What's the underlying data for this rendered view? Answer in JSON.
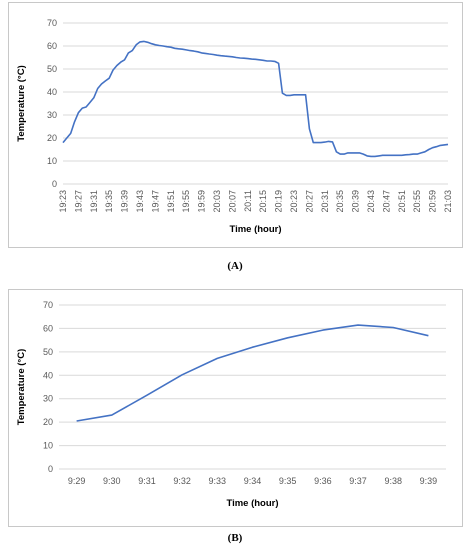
{
  "chart_data": [
    {
      "panel": "(A)",
      "type": "line",
      "title": "",
      "xlabel": "Time (hour)",
      "ylabel": "Temperature (°C)",
      "ylim": [
        0,
        70
      ],
      "yticks": [
        0,
        10,
        20,
        30,
        40,
        50,
        60,
        70
      ],
      "grid": true,
      "xtick_labels": [
        "19:23",
        "19:27",
        "19:31",
        "19:35",
        "19:39",
        "19:43",
        "19:47",
        "19:51",
        "19:55",
        "19:59",
        "20:03",
        "20:07",
        "20:11",
        "20:15",
        "20:19",
        "20:23",
        "20:27",
        "20:31",
        "20:35",
        "20:39",
        "20:43",
        "20:47",
        "20:51",
        "20:55",
        "20:59",
        "21:03"
      ],
      "x": [
        "19:23",
        "19:24",
        "19:25",
        "19:26",
        "19:27",
        "19:28",
        "19:29",
        "19:30",
        "19:31",
        "19:32",
        "19:33",
        "19:34",
        "19:35",
        "19:36",
        "19:37",
        "19:38",
        "19:39",
        "19:40",
        "19:41",
        "19:42",
        "19:43",
        "19:44",
        "19:45",
        "19:46",
        "19:47",
        "19:48",
        "19:49",
        "19:50",
        "19:51",
        "19:52",
        "19:53",
        "19:54",
        "19:55",
        "19:56",
        "19:57",
        "19:58",
        "19:59",
        "20:00",
        "20:01",
        "20:02",
        "20:03",
        "20:04",
        "20:05",
        "20:06",
        "20:07",
        "20:08",
        "20:09",
        "20:10",
        "20:11",
        "20:12",
        "20:13",
        "20:14",
        "20:15",
        "20:16",
        "20:17",
        "20:18",
        "20:19",
        "20:20",
        "20:21",
        "20:22",
        "20:23",
        "20:24",
        "20:25",
        "20:26",
        "20:27",
        "20:28",
        "20:29",
        "20:30",
        "20:31",
        "20:32",
        "20:33",
        "20:34",
        "20:35",
        "20:36",
        "20:37",
        "20:38",
        "20:39",
        "20:40",
        "20:41",
        "20:42",
        "20:43",
        "20:44",
        "20:45",
        "20:46",
        "20:47",
        "20:48",
        "20:49",
        "20:50",
        "20:51",
        "20:52",
        "20:53",
        "20:54",
        "20:55",
        "20:56",
        "20:57",
        "20:58",
        "20:59",
        "21:00",
        "21:01",
        "21:02",
        "21:03"
      ],
      "values": [
        18,
        20,
        22,
        27,
        31,
        33,
        33.5,
        35.5,
        37.5,
        41.5,
        43.5,
        44.8,
        46,
        49.5,
        51.5,
        53,
        54,
        57,
        58,
        60.5,
        61.8,
        62,
        61.6,
        61,
        60.5,
        60.2,
        60,
        59.7,
        59.5,
        59,
        58.8,
        58.6,
        58.3,
        58,
        57.8,
        57.5,
        57,
        56.8,
        56.5,
        56.3,
        56,
        55.8,
        55.6,
        55.5,
        55.3,
        55,
        54.8,
        54.7,
        54.5,
        54.3,
        54.2,
        54,
        53.8,
        53.5,
        53.5,
        53.3,
        52.5,
        39.5,
        38.5,
        38.5,
        38.8,
        38.8,
        38.8,
        38.8,
        24,
        18,
        18,
        18,
        18.2,
        18.5,
        18.3,
        14,
        13,
        13,
        13.5,
        13.5,
        13.5,
        13.5,
        13,
        12.2,
        12,
        12,
        12.2,
        12.5,
        12.5,
        12.5,
        12.5,
        12.5,
        12.5,
        12.7,
        12.8,
        13,
        13,
        13.5,
        14,
        15,
        15.8,
        16.2,
        16.8,
        17,
        17.2
      ]
    },
    {
      "panel": "(B)",
      "type": "line",
      "title": "",
      "xlabel": "Time (hour)",
      "ylabel": "Temperature (°C)",
      "ylim": [
        0,
        70
      ],
      "yticks": [
        0,
        10,
        20,
        30,
        40,
        50,
        60,
        70
      ],
      "grid": true,
      "categories": [
        "9:29",
        "9:30",
        "9:31",
        "9:32",
        "9:33",
        "9:34",
        "9:35",
        "9:36",
        "9:37",
        "9:38",
        "9:39"
      ],
      "values": [
        20.5,
        23,
        31.5,
        40.2,
        47.2,
        52,
        56,
        59.3,
        61.4,
        60.4,
        56.9
      ]
    }
  ],
  "captions": [
    "(A)",
    "(B)"
  ]
}
